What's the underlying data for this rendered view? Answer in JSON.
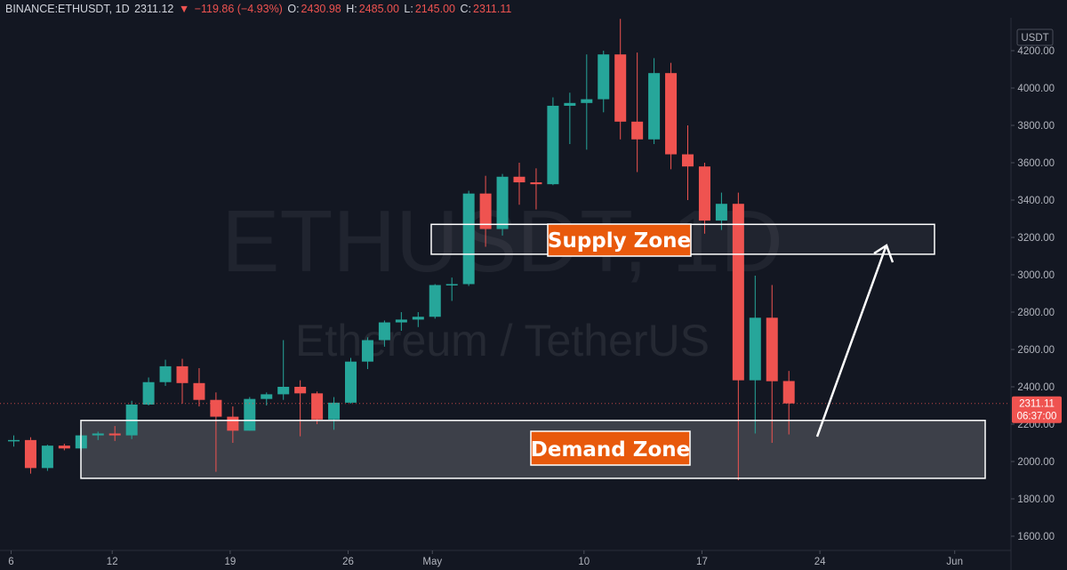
{
  "header": {
    "symbol": "BINANCE:ETHUSDT, 1D",
    "last": "2311.12",
    "change": "−119.86 (−4.93%)",
    "open_key": "O:",
    "open": "2430.98",
    "high_key": "H:",
    "high": "2485.00",
    "low_key": "L:",
    "low": "2145.00",
    "close_key": "C:",
    "close": "2311.11"
  },
  "watermark": {
    "line1": "ETHUSDT, 1D",
    "line2": "Ethereum / TetherUS"
  },
  "colors": {
    "background": "#131722",
    "up": "#26a69a",
    "down": "#ef5350",
    "zone_label_bg": "#e8590c"
  },
  "chart_data": {
    "type": "candlestick",
    "currency_label": "USDT",
    "yaxis_ticks": [
      "1600.00",
      "1800.00",
      "2000.00",
      "2200.00",
      "2400.00",
      "2600.00",
      "2800.00",
      "3000.00",
      "3200.00",
      "3400.00",
      "3600.00",
      "3800.00",
      "4000.00",
      "4200.00"
    ],
    "ylim": [
      1560,
      4330
    ],
    "xaxis_ticks": [
      "6",
      "12",
      "19",
      "26",
      "May",
      "10",
      "17",
      "24",
      "Jun"
    ],
    "price_tag": {
      "price": "2311.11",
      "countdown": "06:37:00"
    },
    "candles": [
      {
        "date": "2021-04-06",
        "o": 2110,
        "h": 2140,
        "l": 2080,
        "c": 2115
      },
      {
        "date": "2021-04-07",
        "o": 2115,
        "h": 2130,
        "l": 1935,
        "c": 1965
      },
      {
        "date": "2021-04-08",
        "o": 1965,
        "h": 2090,
        "l": 1950,
        "c": 2085
      },
      {
        "date": "2021-04-09",
        "o": 2085,
        "h": 2095,
        "l": 2060,
        "c": 2070
      },
      {
        "date": "2021-04-10",
        "o": 2070,
        "h": 2180,
        "l": 2055,
        "c": 2140
      },
      {
        "date": "2021-04-11",
        "o": 2140,
        "h": 2160,
        "l": 2115,
        "c": 2150
      },
      {
        "date": "2021-04-12",
        "o": 2150,
        "h": 2190,
        "l": 2110,
        "c": 2140
      },
      {
        "date": "2021-04-13",
        "o": 2140,
        "h": 2325,
        "l": 2120,
        "c": 2305
      },
      {
        "date": "2021-04-14",
        "o": 2305,
        "h": 2450,
        "l": 2300,
        "c": 2425
      },
      {
        "date": "2021-04-15",
        "o": 2425,
        "h": 2545,
        "l": 2405,
        "c": 2510
      },
      {
        "date": "2021-04-16",
        "o": 2510,
        "h": 2550,
        "l": 2310,
        "c": 2420
      },
      {
        "date": "2021-04-17",
        "o": 2420,
        "h": 2500,
        "l": 2295,
        "c": 2330
      },
      {
        "date": "2021-04-18",
        "o": 2330,
        "h": 2370,
        "l": 1945,
        "c": 2240
      },
      {
        "date": "2021-04-19",
        "o": 2240,
        "h": 2295,
        "l": 2100,
        "c": 2165
      },
      {
        "date": "2021-04-20",
        "o": 2165,
        "h": 2345,
        "l": 2165,
        "c": 2335
      },
      {
        "date": "2021-04-21",
        "o": 2335,
        "h": 2370,
        "l": 2300,
        "c": 2360
      },
      {
        "date": "2021-04-22",
        "o": 2360,
        "h": 2650,
        "l": 2330,
        "c": 2400
      },
      {
        "date": "2021-04-23",
        "o": 2400,
        "h": 2435,
        "l": 2135,
        "c": 2365
      },
      {
        "date": "2021-04-24",
        "o": 2365,
        "h": 2375,
        "l": 2200,
        "c": 2225
      },
      {
        "date": "2021-04-25",
        "o": 2225,
        "h": 2345,
        "l": 2170,
        "c": 2315
      },
      {
        "date": "2021-04-26",
        "o": 2315,
        "h": 2555,
        "l": 2310,
        "c": 2535
      },
      {
        "date": "2021-04-27",
        "o": 2535,
        "h": 2665,
        "l": 2495,
        "c": 2650
      },
      {
        "date": "2021-04-28",
        "o": 2650,
        "h": 2755,
        "l": 2615,
        "c": 2745
      },
      {
        "date": "2021-04-29",
        "o": 2745,
        "h": 2800,
        "l": 2700,
        "c": 2760
      },
      {
        "date": "2021-04-30",
        "o": 2760,
        "h": 2800,
        "l": 2720,
        "c": 2775
      },
      {
        "date": "2021-05-01",
        "o": 2775,
        "h": 2950,
        "l": 2765,
        "c": 2945
      },
      {
        "date": "2021-05-02",
        "o": 2945,
        "h": 2985,
        "l": 2860,
        "c": 2950
      },
      {
        "date": "2021-05-03",
        "o": 2950,
        "h": 3450,
        "l": 2940,
        "c": 3435
      },
      {
        "date": "2021-05-04",
        "o": 3435,
        "h": 3530,
        "l": 3150,
        "c": 3245
      },
      {
        "date": "2021-05-05",
        "o": 3245,
        "h": 3540,
        "l": 3210,
        "c": 3525
      },
      {
        "date": "2021-05-06",
        "o": 3525,
        "h": 3600,
        "l": 3375,
        "c": 3495
      },
      {
        "date": "2021-05-07",
        "o": 3495,
        "h": 3570,
        "l": 3350,
        "c": 3485
      },
      {
        "date": "2021-05-08",
        "o": 3485,
        "h": 3950,
        "l": 3480,
        "c": 3905
      },
      {
        "date": "2021-05-09",
        "o": 3905,
        "h": 3975,
        "l": 3700,
        "c": 3920
      },
      {
        "date": "2021-05-10",
        "o": 3920,
        "h": 4180,
        "l": 3670,
        "c": 3940
      },
      {
        "date": "2021-05-11",
        "o": 3940,
        "h": 4200,
        "l": 3870,
        "c": 4180
      },
      {
        "date": "2021-05-12",
        "o": 4180,
        "h": 4370,
        "l": 3725,
        "c": 3820
      },
      {
        "date": "2021-05-13",
        "o": 3820,
        "h": 4190,
        "l": 3550,
        "c": 3725
      },
      {
        "date": "2021-05-14",
        "o": 3725,
        "h": 4160,
        "l": 3700,
        "c": 4080
      },
      {
        "date": "2021-05-15",
        "o": 4080,
        "h": 4135,
        "l": 3565,
        "c": 3645
      },
      {
        "date": "2021-05-16",
        "o": 3645,
        "h": 3800,
        "l": 3400,
        "c": 3580
      },
      {
        "date": "2021-05-17",
        "o": 3580,
        "h": 3600,
        "l": 3220,
        "c": 3290
      },
      {
        "date": "2021-05-18",
        "o": 3290,
        "h": 3440,
        "l": 3240,
        "c": 3380
      },
      {
        "date": "2021-05-19",
        "o": 3380,
        "h": 3440,
        "l": 1900,
        "c": 2435
      },
      {
        "date": "2021-05-20",
        "o": 2435,
        "h": 2995,
        "l": 2150,
        "c": 2770
      },
      {
        "date": "2021-05-21",
        "o": 2770,
        "h": 2945,
        "l": 2100,
        "c": 2430
      },
      {
        "date": "2021-05-22",
        "o": 2431,
        "h": 2485,
        "l": 2145,
        "c": 2311
      }
    ]
  },
  "annotations": {
    "supply_zone_label": "Supply Zone",
    "supply_zone_range": [
      3110,
      3270
    ],
    "demand_zone_label": "Demand Zone",
    "demand_zone_range": [
      1910,
      2220
    ]
  }
}
